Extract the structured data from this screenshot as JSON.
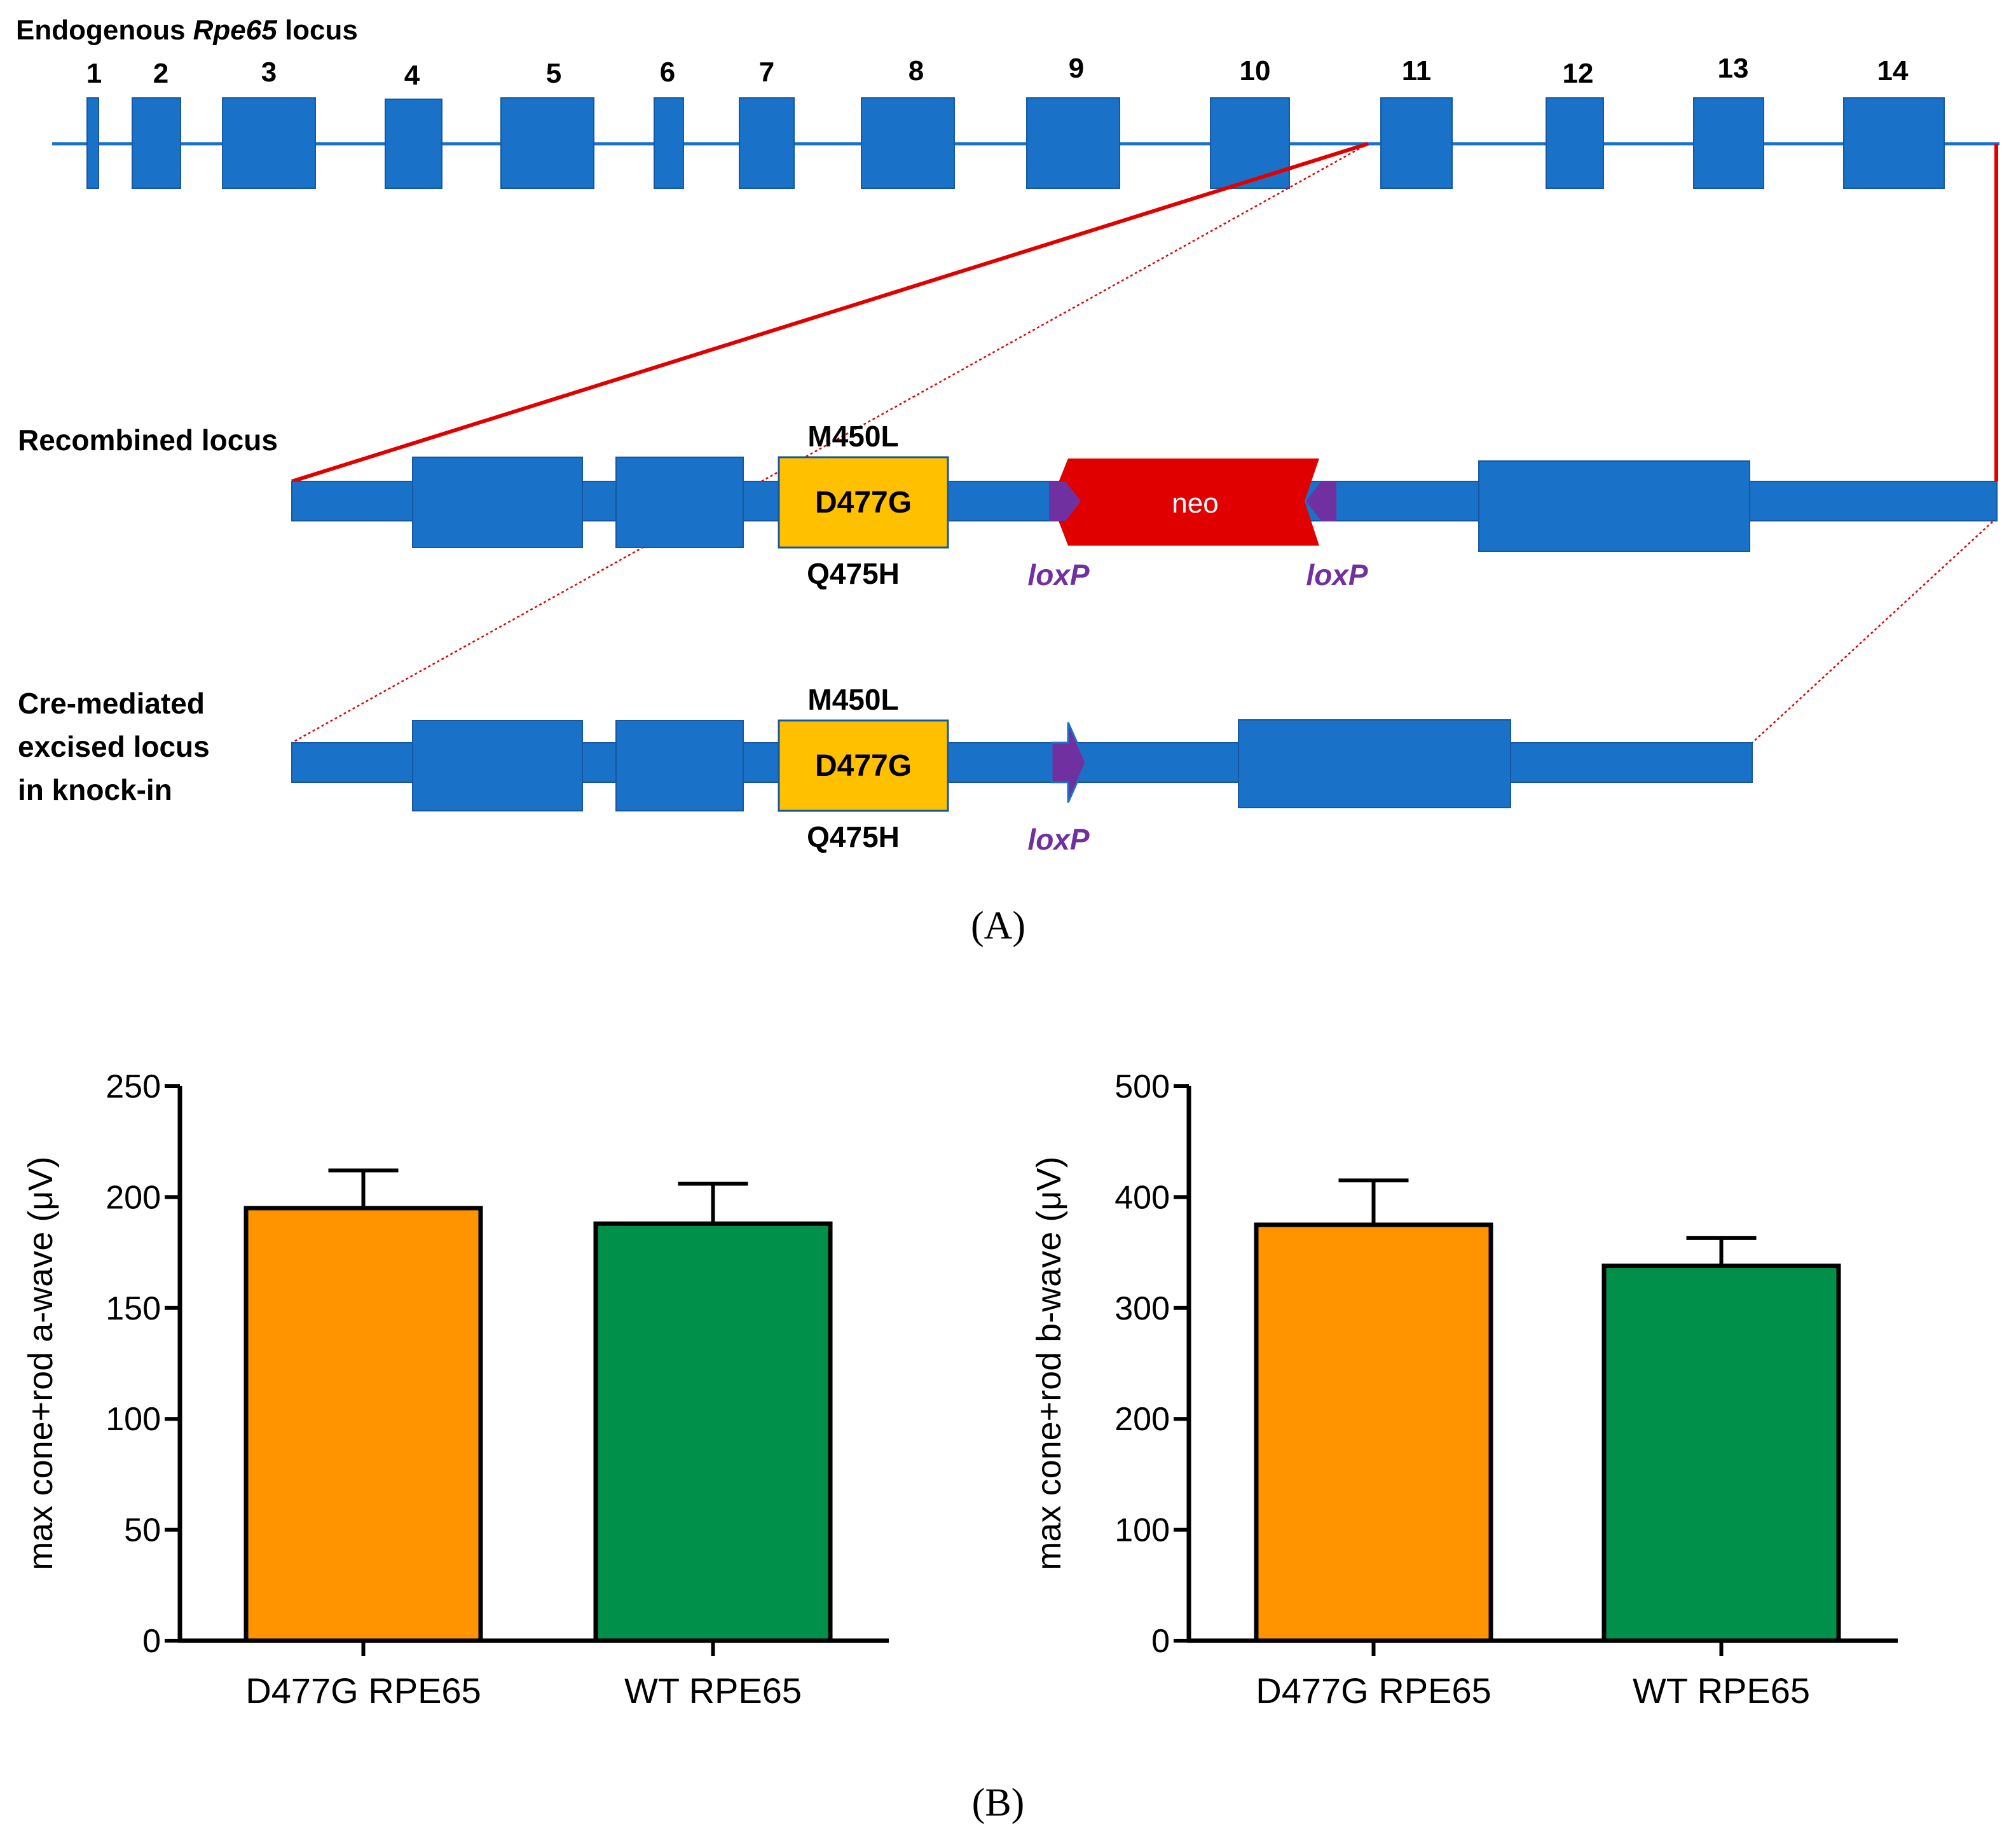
{
  "panel_a": {
    "endogenous": {
      "title_prefix": "Endogenous ",
      "title_gene": "Rpe65",
      "title_suffix": " locus",
      "exons": [
        "1",
        "2",
        "3",
        "4",
        "5",
        "6",
        "7",
        "8",
        "9",
        "10",
        "11",
        "12",
        "13",
        "14"
      ]
    },
    "recombined": {
      "title": "Recombined locus",
      "mutation_top": "M450L",
      "mutation_main": "D477G",
      "mutation_bottom": "Q475H",
      "cassette": "neo",
      "loxp_left": "loxP",
      "loxp_right": "loxP"
    },
    "excised": {
      "title_line1": "Cre-mediated",
      "title_line2": "excised locus",
      "title_line3": "in knock-in",
      "mutation_top": "M450L",
      "mutation_main": "D477G",
      "mutation_bottom": "Q475H",
      "loxp": "loxP"
    },
    "panel_label": "(A)",
    "colors": {
      "exon": "#1a72c8",
      "mutation_box": "#ffc000",
      "neo": "#e00000",
      "loxp": "#7030a0",
      "link_line": "#e00000"
    }
  },
  "panel_b_label": "(B)",
  "chart_data": [
    {
      "type": "bar",
      "categories": [
        "D477G RPE65",
        "WT RPE65"
      ],
      "values": [
        195,
        188
      ],
      "errors": [
        17,
        18
      ],
      "colors": [
        "#ff9400",
        "#00904a"
      ],
      "ylabel": "max cone+rod a-wave (μV)",
      "ylim": [
        0,
        250
      ],
      "yticks": [
        0,
        50,
        100,
        150,
        200,
        250
      ]
    },
    {
      "type": "bar",
      "categories": [
        "D477G RPE65",
        "WT RPE65"
      ],
      "values": [
        375,
        338
      ],
      "errors": [
        40,
        25
      ],
      "colors": [
        "#ff9400",
        "#00904a"
      ],
      "ylabel": "max cone+rod b-wave (μV)",
      "ylim": [
        0,
        500
      ],
      "yticks": [
        0,
        100,
        200,
        300,
        400,
        500
      ]
    }
  ]
}
